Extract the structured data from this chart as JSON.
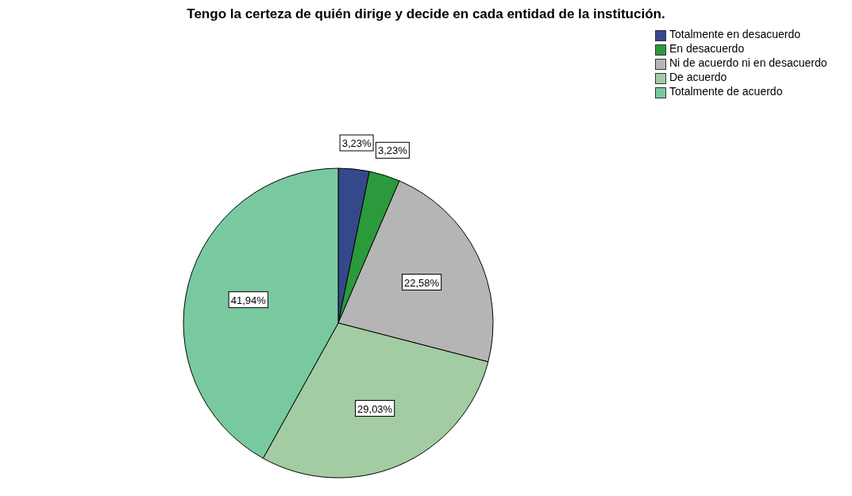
{
  "chart_data": {
    "type": "pie",
    "title": "Tengo la certeza de quién dirige y decide en cada entidad de la institución.",
    "categories": [
      "Totalmente en desacuerdo",
      "En desacuerdo",
      "Ni de acuerdo ni en desacuerdo",
      "De acuerdo",
      "Totalmente de acuerdo"
    ],
    "values": [
      3.23,
      3.23,
      22.58,
      29.03,
      41.94
    ],
    "value_labels": [
      "3,23%",
      "3,23%",
      "22,58%",
      "29,03%",
      "41,94%"
    ],
    "colors": [
      "#34488c",
      "#2a9a3c",
      "#b5b5b5",
      "#a3cca3",
      "#79c9a0"
    ],
    "legend": "top right"
  }
}
